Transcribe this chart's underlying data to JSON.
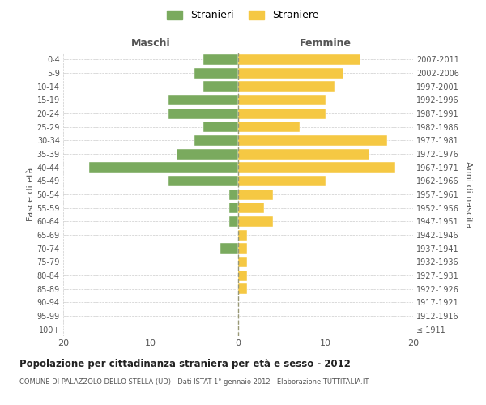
{
  "age_groups": [
    "100+",
    "95-99",
    "90-94",
    "85-89",
    "80-84",
    "75-79",
    "70-74",
    "65-69",
    "60-64",
    "55-59",
    "50-54",
    "45-49",
    "40-44",
    "35-39",
    "30-34",
    "25-29",
    "20-24",
    "15-19",
    "10-14",
    "5-9",
    "0-4"
  ],
  "birth_years": [
    "≤ 1911",
    "1912-1916",
    "1917-1921",
    "1922-1926",
    "1927-1931",
    "1932-1936",
    "1937-1941",
    "1942-1946",
    "1947-1951",
    "1952-1956",
    "1957-1961",
    "1962-1966",
    "1967-1971",
    "1972-1976",
    "1977-1981",
    "1982-1986",
    "1987-1991",
    "1992-1996",
    "1997-2001",
    "2002-2006",
    "2007-2011"
  ],
  "males": [
    0,
    0,
    0,
    0,
    0,
    0,
    2,
    0,
    1,
    1,
    1,
    8,
    17,
    7,
    5,
    4,
    8,
    8,
    4,
    5,
    4
  ],
  "females": [
    0,
    0,
    0,
    1,
    1,
    1,
    1,
    1,
    4,
    3,
    4,
    10,
    18,
    15,
    17,
    7,
    10,
    10,
    11,
    12,
    14
  ],
  "male_color": "#7aaa5e",
  "female_color": "#f5c843",
  "grid_color": "#cccccc",
  "title": "Popolazione per cittadinanza straniera per età e sesso - 2012",
  "subtitle": "COMUNE DI PALAZZOLO DELLO STELLA (UD) - Dati ISTAT 1° gennaio 2012 - Elaborazione TUTTITALIA.IT",
  "xlabel_left": "Maschi",
  "xlabel_right": "Femmine",
  "ylabel_left": "Fasce di età",
  "ylabel_right": "Anni di nascita",
  "xlim": 20,
  "legend_stranieri": "Stranieri",
  "legend_straniere": "Straniere",
  "background_color": "#ffffff",
  "text_color": "#555555",
  "title_color": "#222222"
}
